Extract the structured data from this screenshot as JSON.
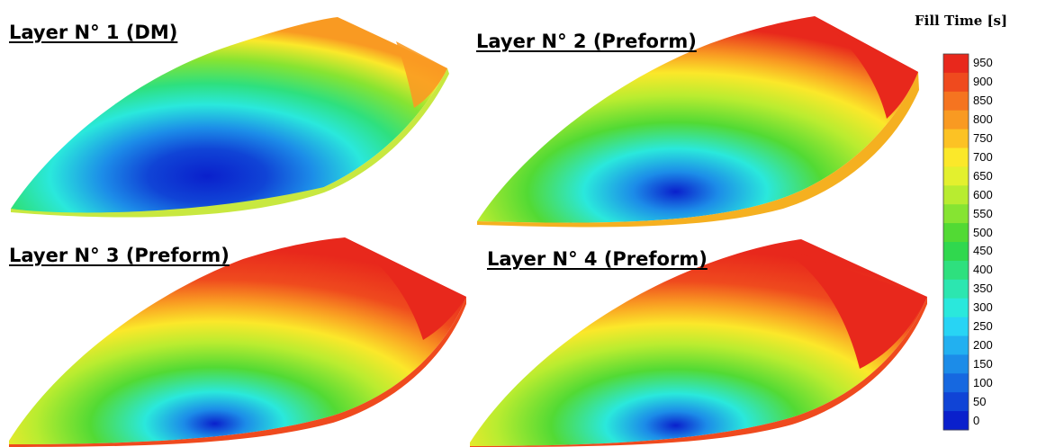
{
  "layers": [
    {
      "title": "Layer N° 1 (DM)"
    },
    {
      "title": "Layer N° 2 (Preform)"
    },
    {
      "title": "Layer N° 3 (Preform)"
    },
    {
      "title": "Layer N° 4 (Preform)"
    }
  ],
  "legend": {
    "title": "Fill Time [s]",
    "ticks": [
      "950",
      "900",
      "850",
      "800",
      "750",
      "700",
      "650",
      "600",
      "550",
      "500",
      "450",
      "400",
      "350",
      "300",
      "250",
      "200",
      "150",
      "100",
      "50",
      "0"
    ],
    "colors": [
      "#e8281c",
      "#ef4a1e",
      "#f57420",
      "#f99a22",
      "#fcc224",
      "#fbe82a",
      "#e3f02e",
      "#b8ec30",
      "#86e432",
      "#52da34",
      "#30d84e",
      "#2ee07e",
      "#2ce6b0",
      "#2ae8dc",
      "#28d4f4",
      "#22b0f0",
      "#1c8ce8",
      "#1668e0",
      "#1044d6",
      "#0a20cc"
    ]
  }
}
